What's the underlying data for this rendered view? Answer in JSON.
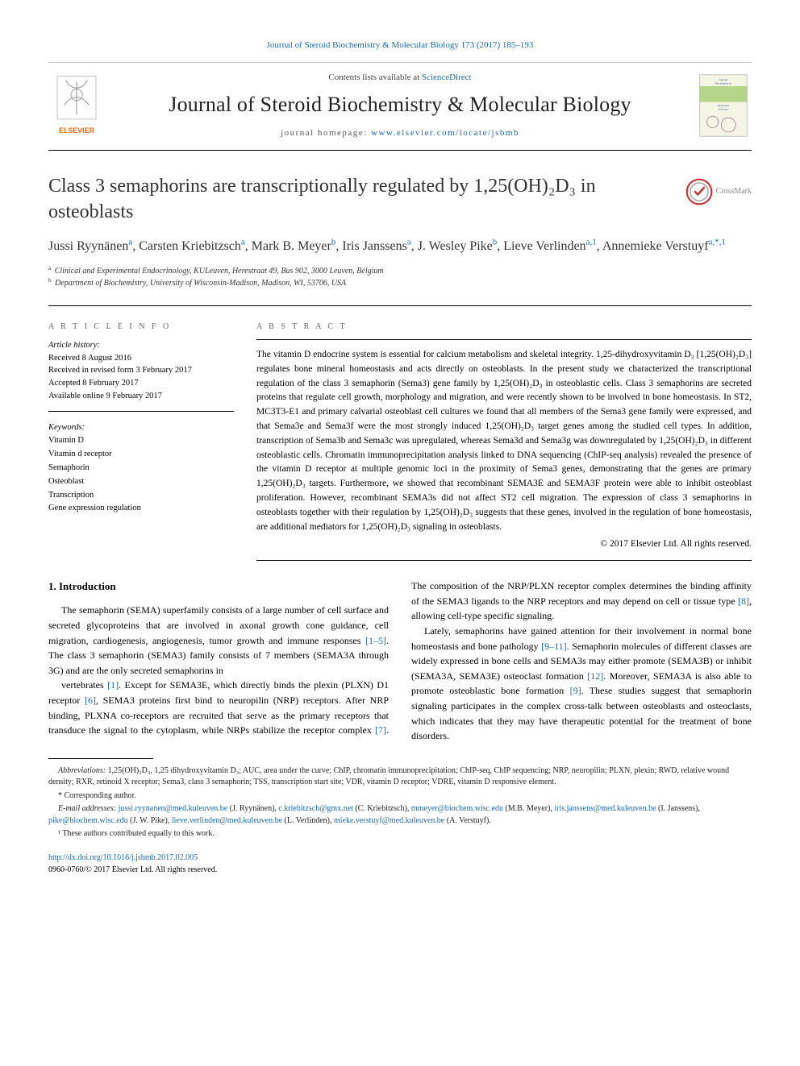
{
  "running_header": "Journal of Steroid Biochemistry & Molecular Biology 173 (2017) 185–193",
  "banner": {
    "contents": "Contents lists available at ",
    "contents_link": "ScienceDirect",
    "journal_title": "Journal of Steroid Biochemistry & Molecular Biology",
    "homepage_label": "journal homepage: ",
    "homepage_url": "www.elsevier.com/locate/jsbmb",
    "elsevier_label": "ELSEVIER",
    "cover_label": "Steroid Biochemistry & Molecular Biology",
    "colors": {
      "elsevier_orange": "#ff6b00",
      "elsevier_text": "#6b6b6b",
      "cover_bg": "#f5f5e6",
      "cover_band": "#8bbf4a"
    }
  },
  "crossmark_label": "CrossMark",
  "title": "Class 3 semaphorins are transcriptionally regulated by 1,25(OH)₂D₃ in osteoblasts",
  "authors_html": "Jussi Ryynänen<sup>a</sup>, Carsten Kriebitzsch<sup>a</sup>, Mark B. Meyer<sup>b</sup>, Iris Janssens<sup>a</sup>, J. Wesley Pike<sup>b</sup>, Lieve Verlinden<sup>a,1</sup>, Annemieke Verstuyf<sup>a,*,1</sup>",
  "affiliations": [
    {
      "sup": "a",
      "text": "Clinical and Experimental Endocrinology, KULeuven, Herestraat 49, Bus 902, 3000 Leuven, Belgium"
    },
    {
      "sup": "b",
      "text": "Department of Biochemistry, University of Wisconsin-Madison, Madison, WI, 53706, USA"
    }
  ],
  "info": {
    "label": "A R T I C L E   I N F O",
    "history_heading": "Article history:",
    "history": [
      "Received 8 August 2016",
      "Received in revised form 3 February 2017",
      "Accepted 8 February 2017",
      "Available online 9 February 2017"
    ],
    "keywords_heading": "Keywords:",
    "keywords": [
      "Vitamin D",
      "Vitamin d receptor",
      "Semaphorin",
      "Osteoblast",
      "Transcription",
      "Gene expression regulation"
    ]
  },
  "abstract": {
    "label": "A B S T R A C T",
    "text": "The vitamin D endocrine system is essential for calcium metabolism and skeletal integrity. 1,25-dihydroxyvitamin D₃ [1,25(OH)₂D₃] regulates bone mineral homeostasis and acts directly on osteoblasts. In the present study we characterized the transcriptional regulation of the class 3 semaphorin (Sema3) gene family by 1,25(OH)₂D₃ in osteoblastic cells. Class 3 semaphorins are secreted proteins that regulate cell growth, morphology and migration, and were recently shown to be involved in bone homeostasis. In ST2, MC3T3-E1 and primary calvarial osteoblast cell cultures we found that all members of the Sema3 gene family were expressed, and that Sema3e and Sema3f were the most strongly induced 1,25(OH)₂D₃ target genes among the studied cell types. In addition, transcription of Sema3b and Sema3c was upregulated, whereas Sema3d and Sema3g was downregulated by 1,25(OH)₂D₃ in different osteoblastic cells. Chromatin immunoprecipitation analysis linked to DNA sequencing (ChIP-seq analysis) revealed the presence of the vitamin D receptor at multiple genomic loci in the proximity of Sema3 genes, demonstrating that the genes are primary 1,25(OH)₂D₃ targets. Furthermore, we showed that recombinant SEMA3E and SEMA3F protein were able to inhibit osteoblast proliferation. However, recombinant SEMA3s did not affect ST2 cell migration. The expression of class 3 semaphorins in osteoblasts together with their regulation by 1,25(OH)₂D₃ suggests that these genes, involved in the regulation of bone homeostasis, are additional mediators for 1,25(OH)₂D₃ signaling in osteoblasts.",
    "copyright": "© 2017 Elsevier Ltd. All rights reserved."
  },
  "intro": {
    "heading": "1. Introduction",
    "p1_html": "The semaphorin (SEMA) superfamily consists of a large number of cell surface and secreted glycoproteins that are involved in axonal growth cone guidance, cell migration, cardiogenesis, angiogenesis, tumor growth and immune responses <span class='cite'>[1–5]</span>. The class 3 semaphorin (SEMA3) family consists of 7 members (SEMA3A through 3G) and are the only secreted semaphorins in",
    "p2_html": "vertebrates <span class='cite'>[1]</span>. Except for SEMA3E, which directly binds the plexin (PLXN) D1 receptor <span class='cite'>[6]</span>, SEMA3 proteins first bind to neuropilin (NRP) receptors. After NRP binding, PLXNA co-receptors are recruited that serve as the primary receptors that transduce the signal to the cytoplasm, while NRPs stabilize the receptor complex <span class='cite'>[7]</span>. The composition of the NRP/PLXN receptor complex determines the binding affinity of the SEMA3 ligands to the NRP receptors and may depend on cell or tissue type <span class='cite'>[8]</span>, allowing cell-type specific signaling.",
    "p3_html": "Lately, semaphorins have gained attention for their involvement in normal bone homeostasis and bone pathology <span class='cite'>[9–11]</span>. Semaphorin molecules of different classes are widely expressed in bone cells and SEMA3s may either promote (SEMA3B) or inhibit (SEMA3A, SEMA3E) osteoclast formation <span class='cite'>[12]</span>. Moreover, SEMA3A is also able to promote osteoblastic bone formation <span class='cite'>[9]</span>. These studies suggest that semaphorin signaling participates in the complex cross-talk between osteoblasts and osteoclasts, which indicates that they may have therapeutic potential for the treatment of bone disorders."
  },
  "footnotes": {
    "abbrev_label": "Abbreviations:",
    "abbrev_text": " 1,25(OH)₂D₃, 1,25 dihydroxyvitamin D₃; AUC, area under the curve; ChIP, chromatin immunoprecipitation; ChIP-seq, ChIP sequencing; NRP, neuropilin; PLXN, plexin; RWD, relative wound density; RXR, retinoid X receptor; Sema3, class 3 semaphorin; TSS, transcription start site; VDR, vitamin D receptor; VDRE, vitamin D responsive element.",
    "corresponding": "* Corresponding author.",
    "email_label": "E-mail addresses:",
    "emails_html": " <a>jussi.ryynanen@med.kuleuven.be</a> (J. Ryynänen), <a>c.kriebitzsch@gmx.net</a> (C. Kriebitzsch), <a>mmeyer@biochem.wisc.edu</a> (M.B. Meyer), <a>iris.janssens@med.kuleuven.be</a> (I. Janssens), <a>pike@biochem.wisc.edu</a> (J. W. Pike), <a>lieve.verlinden@med.kuleuven.be</a> (L. Verlinden), <a>mieke.verstuyf@med.kuleuven.be</a> (A. Verstuyf).",
    "equal": "¹ These authors contributed equally to this work."
  },
  "doi": {
    "url": "http://dx.doi.org/10.1016/j.jsbmb.2017.02.005",
    "copyright": "0960-0760/© 2017 Elsevier Ltd. All rights reserved."
  },
  "colors": {
    "link": "#1a6ba8"
  }
}
